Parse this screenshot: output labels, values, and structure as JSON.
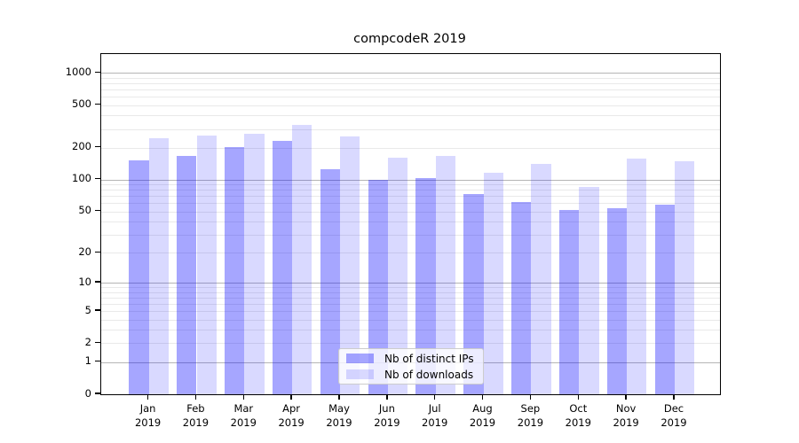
{
  "title": "compcodeR 2019",
  "legend": {
    "items": [
      {
        "label": "Nb of distinct IPs",
        "color": "rgba(0,0,255,0.35)"
      },
      {
        "label": "Nb of downloads",
        "color": "rgba(0,0,255,0.15)"
      }
    ],
    "position": "bottom-center inside plot"
  },
  "axes": {
    "y_tick_labels": [
      "1000",
      "500",
      "200",
      "100",
      "50",
      "20",
      "10",
      "5",
      "2",
      "1",
      "0"
    ],
    "x_tick_line1": [
      "Jan",
      "Feb",
      "Mar",
      "Apr",
      "May",
      "Jun",
      "Jul",
      "Aug",
      "Sep",
      "Oct",
      "Nov",
      "Dec"
    ],
    "x_tick_line2": [
      "2019",
      "2019",
      "2019",
      "2019",
      "2019",
      "2019",
      "2019",
      "2019",
      "2019",
      "2019",
      "2019",
      "2019"
    ]
  },
  "chart_data": {
    "type": "bar",
    "title": "compcodeR 2019",
    "categories": [
      "Jan 2019",
      "Feb 2019",
      "Mar 2019",
      "Apr 2019",
      "May 2019",
      "Jun 2019",
      "Jul 2019",
      "Aug 2019",
      "Sep 2019",
      "Oct 2019",
      "Nov 2019",
      "Dec 2019"
    ],
    "series": [
      {
        "name": "Nb of distinct IPs",
        "color": "rgba(0,0,255,0.35)",
        "values": [
          152,
          167,
          202,
          233,
          125,
          100,
          104,
          73,
          62,
          52,
          54,
          58
        ]
      },
      {
        "name": "Nb of downloads",
        "color": "rgba(0,0,255,0.15)",
        "values": [
          244,
          260,
          268,
          324,
          253,
          160,
          167,
          116,
          141,
          86,
          157,
          148
        ]
      }
    ],
    "xlabel": "",
    "ylabel": "",
    "yscale": "log10(value+1)",
    "y_ticks": [
      1000,
      500,
      200,
      100,
      50,
      20,
      10,
      5,
      2,
      1,
      0
    ],
    "y_minor_ticks": [
      3,
      4,
      6,
      7,
      8,
      9,
      30,
      40,
      60,
      70,
      80,
      90,
      300,
      400,
      600,
      700,
      800,
      900
    ],
    "ylim": [
      0,
      1490
    ],
    "grid": "horizontal, dark lines at powers of 10, light minor lines",
    "legend_position": "lower center inside",
    "bar_grouping": "paired, touching, centered on month tick"
  },
  "colors": {
    "bar_dark": "rgba(0,0,255,0.35)",
    "bar_light": "rgba(0,0,255,0.15)",
    "grid_major": "#b5b5b5",
    "grid_minor": "#e9e9e9",
    "axis": "#000000",
    "background": "#ffffff"
  }
}
